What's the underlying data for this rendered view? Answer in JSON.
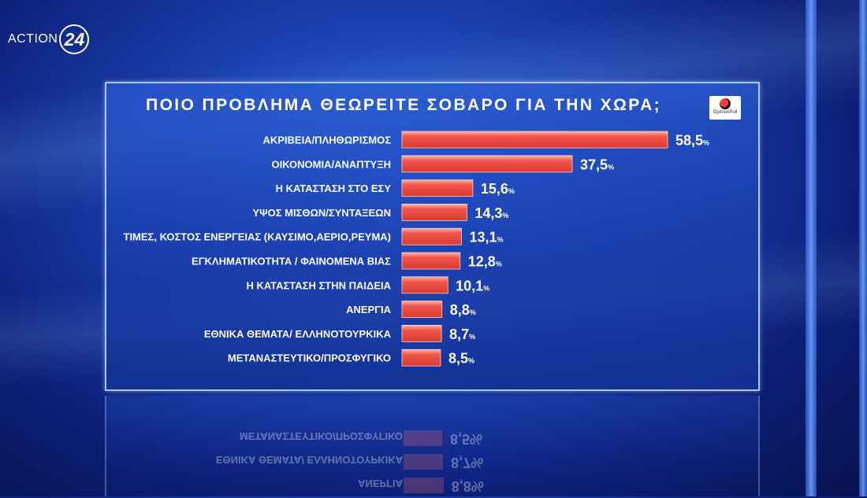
{
  "channel": {
    "name": "ACTION",
    "number": "24"
  },
  "pollster": "OpinionPoll",
  "chart_data": {
    "type": "bar",
    "orientation": "horizontal",
    "title": "ΠΟΙΟ ΠΡΟΒΛΗΜΑ ΘΕΩΡΕΙΤΕ ΣΟΒΑΡΟ ΓΙΑ ΤΗΝ ΧΩΡΑ;",
    "categories": [
      "ΑΚΡΙΒΕΙΑ/ΠΛΗΘΩΡΙΣΜΟΣ",
      "ΟΙΚΟΝΟΜΙΑ/ΑΝΑΠΤΥΞΗ",
      "Η ΚΑΤΑΣΤΑΣΗ ΣΤΟ ΕΣΥ",
      "ΥΨΟΣ ΜΙΣΘΩΝ/ΣΥΝΤΑΞΕΩΝ",
      "ΤΙΜΕΣ, ΚΟΣΤΟΣ ΕΝΕΡΓΕΙΑΣ (ΚΑΥΣΙΜΟ,ΑΕΡΙΟ,ΡΕΥΜΑ)",
      "ΕΓΚΛΗΜΑΤΙΚΟΤΗΤΑ / ΦΑΙΝΟΜΕΝΑ ΒΙΑΣ",
      "Η ΚΑΤΑΣΤΑΣΗ ΣΤΗΝ ΠΑΙΔΕΙΑ",
      "ΑΝΕΡΓΙΑ",
      "ΕΘΝΙΚΑ ΘΕΜΑΤΑ/ ΕΛΛΗΝΟΤΟΥΡΚΙΚΑ",
      "ΜΕΤΑΝΑΣΤΕΥΤΙΚΟ/ΠΡΟΣΦΥΓΙΚΟ"
    ],
    "values": [
      58.5,
      37.5,
      15.6,
      14.3,
      13.1,
      12.8,
      10.1,
      8.8,
      8.7,
      8.5
    ],
    "value_labels": [
      "58,5",
      "37,5",
      "15,6",
      "14,3",
      "13,1",
      "12,8",
      "10,1",
      "8,8",
      "8,7",
      "8,5"
    ],
    "unit": "%",
    "xlim": [
      0,
      60
    ],
    "bar_color": "#f2564a",
    "bar_highlight": "#ffb3a8",
    "grid": false,
    "legend": "none"
  }
}
